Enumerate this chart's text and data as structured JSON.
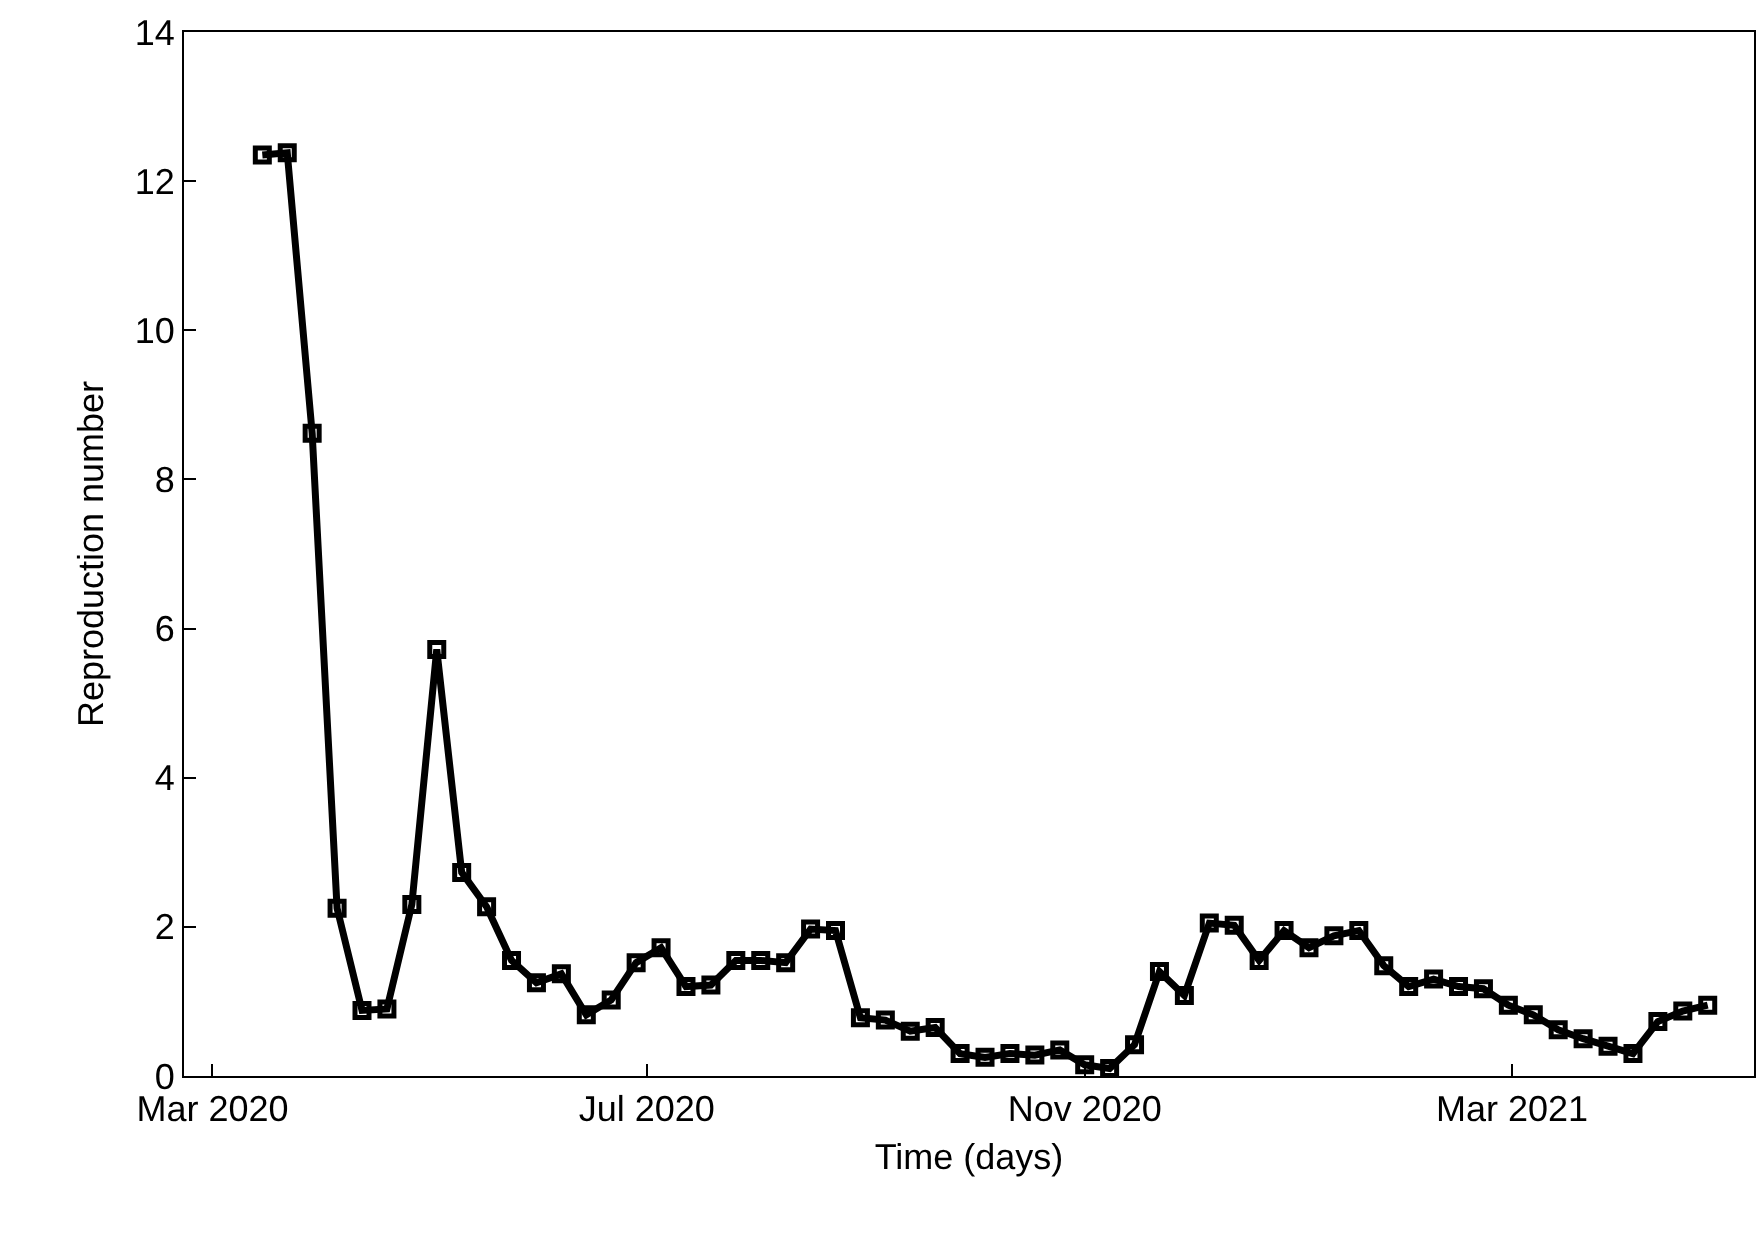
{
  "chart_data": {
    "type": "line",
    "xlabel": "Time (days)",
    "ylabel": "Reproduction number",
    "marker": "square",
    "line_style": "solid",
    "x": [
      "2020-03-15",
      "2020-03-22",
      "2020-03-29",
      "2020-04-05",
      "2020-04-12",
      "2020-04-19",
      "2020-04-26",
      "2020-05-03",
      "2020-05-10",
      "2020-05-17",
      "2020-05-24",
      "2020-05-31",
      "2020-06-07",
      "2020-06-14",
      "2020-06-21",
      "2020-06-28",
      "2020-07-05",
      "2020-07-12",
      "2020-07-19",
      "2020-07-26",
      "2020-08-02",
      "2020-08-09",
      "2020-08-16",
      "2020-08-23",
      "2020-08-30",
      "2020-09-06",
      "2020-09-13",
      "2020-09-20",
      "2020-09-27",
      "2020-10-04",
      "2020-10-11",
      "2020-10-18",
      "2020-10-25",
      "2020-11-01",
      "2020-11-08",
      "2020-11-15",
      "2020-11-22",
      "2020-11-29",
      "2020-12-06",
      "2020-12-13",
      "2020-12-20",
      "2020-12-27",
      "2021-01-03",
      "2021-01-10",
      "2021-01-17",
      "2021-01-24",
      "2021-01-31",
      "2021-02-07",
      "2021-02-14",
      "2021-02-21",
      "2021-02-28",
      "2021-03-07",
      "2021-03-14",
      "2021-03-21",
      "2021-03-28",
      "2021-04-04",
      "2021-04-11",
      "2021-04-18",
      "2021-04-25"
    ],
    "series": [
      {
        "color": "#000000",
        "values": [
          12.35,
          12.38,
          8.62,
          2.25,
          0.88,
          0.9,
          2.3,
          5.72,
          2.73,
          2.27,
          1.55,
          1.25,
          1.37,
          0.82,
          1.02,
          1.52,
          1.72,
          1.2,
          1.22,
          1.55,
          1.55,
          1.52,
          1.97,
          1.95,
          0.78,
          0.75,
          0.6,
          0.65,
          0.3,
          0.25,
          0.3,
          0.28,
          0.35,
          0.15,
          0.1,
          0.42,
          1.4,
          1.08,
          2.05,
          2.02,
          1.55,
          1.95,
          1.72,
          1.88,
          1.95,
          1.48,
          1.2,
          1.3,
          1.2,
          1.17,
          0.95,
          0.82,
          0.62,
          0.5,
          0.4,
          0.3,
          0.73,
          0.87,
          0.95
        ]
      }
    ],
    "xlim": [
      "2020-02-22",
      "2021-05-08"
    ],
    "xticks": [
      {
        "value": "2020-03-01",
        "label": "Mar 2020"
      },
      {
        "value": "2020-07-01",
        "label": "Jul 2020"
      },
      {
        "value": "2020-11-01",
        "label": "Nov 2020"
      },
      {
        "value": "2021-03-01",
        "label": "Mar 2021"
      }
    ],
    "ylim": [
      0,
      14
    ],
    "yticks": [
      0,
      2,
      4,
      6,
      8,
      10,
      12,
      14
    ]
  }
}
